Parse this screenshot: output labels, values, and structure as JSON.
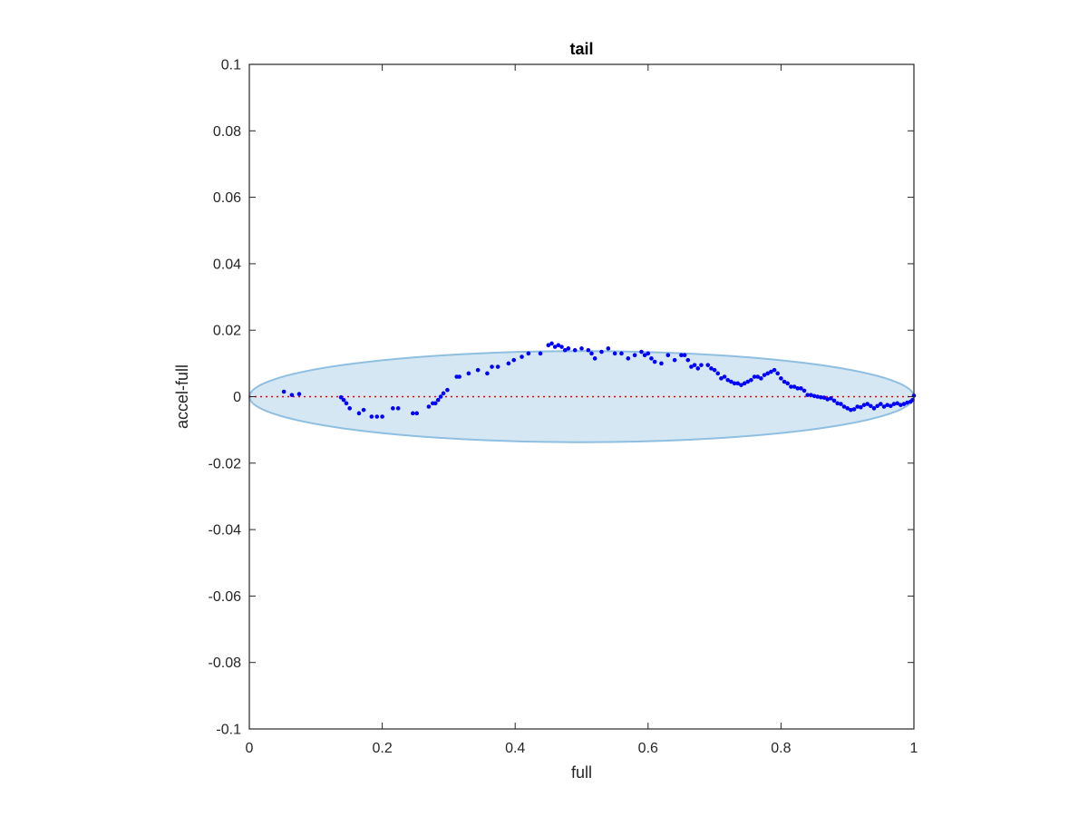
{
  "chart_data": {
    "type": "scatter",
    "title": "tail",
    "xlabel": "full",
    "ylabel": "accel-full",
    "xlim": [
      0,
      1
    ],
    "ylim": [
      -0.1,
      0.1
    ],
    "xticks": [
      0,
      0.2,
      0.4,
      0.6,
      0.8,
      1
    ],
    "xtick_labels": [
      "0",
      "0.2",
      "0.4",
      "0.6",
      "0.8",
      "1"
    ],
    "yticks": [
      -0.1,
      -0.08,
      -0.06,
      -0.04,
      -0.02,
      0,
      0.02,
      0.04,
      0.06,
      0.08,
      0.1
    ],
    "ytick_labels": [
      "-0.1",
      "-0.08",
      "-0.06",
      "-0.04",
      "-0.02",
      "0",
      "0.02",
      "0.04",
      "0.06",
      "0.08",
      "0.1"
    ],
    "grid": false,
    "reference_line": {
      "y": 0,
      "style": "dotted",
      "color": "#ff0000"
    },
    "ellipse": {
      "center": [
        0.5,
        0
      ],
      "x_radius": 0.5,
      "y_radius": 0.0137,
      "fill": "#d6e7f4",
      "stroke": "#8fbfe0"
    },
    "series": [
      {
        "color": "#0000ff",
        "x": [
          0.052,
          0.064,
          0.075,
          0.138,
          0.142,
          0.146,
          0.151,
          0.165,
          0.172,
          0.184,
          0.192,
          0.2,
          0.216,
          0.224,
          0.246,
          0.252,
          0.27,
          0.276,
          0.28,
          0.284,
          0.288,
          0.292,
          0.298,
          0.312,
          0.316,
          0.33,
          0.344,
          0.358,
          0.365,
          0.374,
          0.39,
          0.398,
          0.41,
          0.42,
          0.438,
          0.45,
          0.455,
          0.46,
          0.465,
          0.47,
          0.475,
          0.48,
          0.49,
          0.5,
          0.51,
          0.515,
          0.52,
          0.53,
          0.54,
          0.55,
          0.56,
          0.57,
          0.58,
          0.59,
          0.595,
          0.6,
          0.605,
          0.61,
          0.62,
          0.63,
          0.64,
          0.65,
          0.655,
          0.66,
          0.665,
          0.67,
          0.675,
          0.68,
          0.69,
          0.695,
          0.7,
          0.705,
          0.71,
          0.715,
          0.72,
          0.725,
          0.73,
          0.735,
          0.74,
          0.745,
          0.75,
          0.755,
          0.76,
          0.765,
          0.77,
          0.775,
          0.78,
          0.785,
          0.79,
          0.795,
          0.8,
          0.805,
          0.81,
          0.815,
          0.82,
          0.825,
          0.83,
          0.835,
          0.84,
          0.845,
          0.85,
          0.855,
          0.86,
          0.865,
          0.87,
          0.875,
          0.88,
          0.885,
          0.89,
          0.895,
          0.9,
          0.905,
          0.91,
          0.915,
          0.92,
          0.925,
          0.93,
          0.935,
          0.94,
          0.945,
          0.95,
          0.955,
          0.96,
          0.965,
          0.97,
          0.975,
          0.98,
          0.985,
          0.99,
          0.995,
          0.998,
          1.0
        ],
        "y": [
          0.0015,
          0.0005,
          0.0008,
          -0.0002,
          -0.001,
          -0.002,
          -0.0035,
          -0.005,
          -0.004,
          -0.006,
          -0.006,
          -0.006,
          -0.0035,
          -0.0035,
          -0.005,
          -0.005,
          -0.003,
          -0.002,
          -0.002,
          -0.001,
          0.0,
          0.001,
          0.002,
          0.006,
          0.006,
          0.007,
          0.008,
          0.007,
          0.009,
          0.009,
          0.01,
          0.011,
          0.012,
          0.013,
          0.013,
          0.0155,
          0.016,
          0.015,
          0.0155,
          0.015,
          0.014,
          0.0145,
          0.014,
          0.0145,
          0.014,
          0.013,
          0.0115,
          0.0135,
          0.0145,
          0.013,
          0.013,
          0.0115,
          0.0125,
          0.0135,
          0.0125,
          0.013,
          0.0115,
          0.0105,
          0.01,
          0.0125,
          0.011,
          0.0125,
          0.0125,
          0.011,
          0.009,
          0.0095,
          0.0085,
          0.0095,
          0.0095,
          0.0085,
          0.008,
          0.007,
          0.0055,
          0.006,
          0.005,
          0.0045,
          0.004,
          0.004,
          0.0035,
          0.004,
          0.0045,
          0.005,
          0.006,
          0.006,
          0.0055,
          0.0065,
          0.007,
          0.0075,
          0.008,
          0.007,
          0.0055,
          0.0045,
          0.004,
          0.003,
          0.003,
          0.0025,
          0.0025,
          0.0018,
          0.0005,
          0.0005,
          0.0002,
          0.0,
          -0.0002,
          -0.0003,
          -0.0008,
          -0.0005,
          -0.0012,
          -0.002,
          -0.0022,
          -0.003,
          -0.0035,
          -0.004,
          -0.0038,
          -0.003,
          -0.0032,
          -0.0025,
          -0.0022,
          -0.0028,
          -0.0035,
          -0.0028,
          -0.0022,
          -0.003,
          -0.0025,
          -0.0028,
          -0.0022,
          -0.002,
          -0.0025,
          -0.0022,
          -0.0018,
          -0.0015,
          -0.001,
          0.0003
        ]
      }
    ]
  }
}
